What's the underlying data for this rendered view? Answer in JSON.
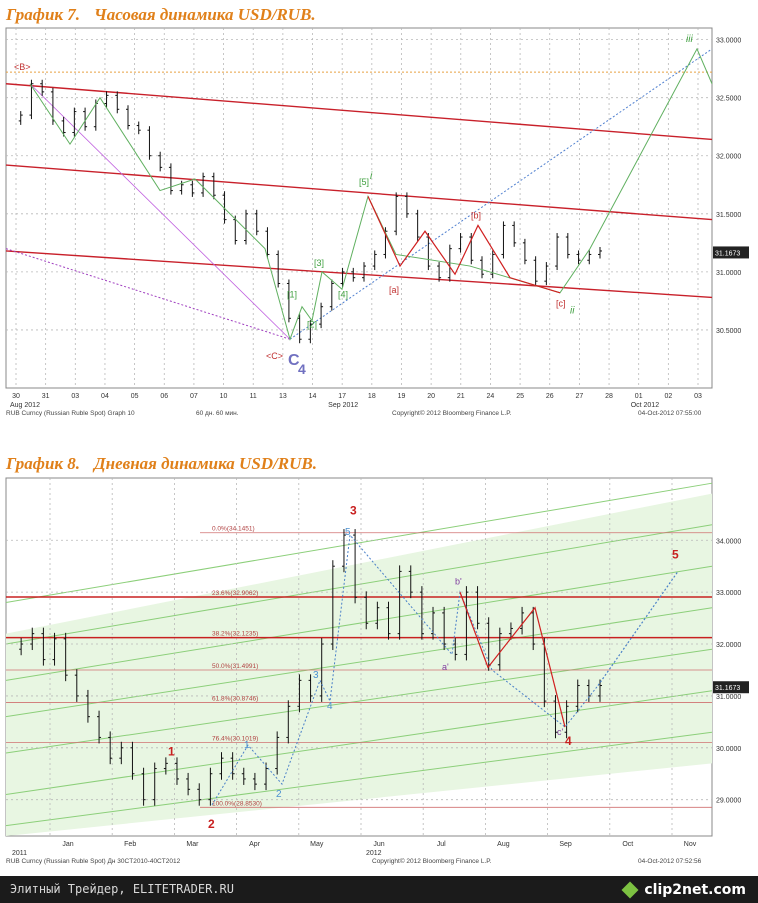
{
  "chart_data": [
    {
      "type": "line",
      "title": "График 7.",
      "subtitle": "Часовая динамика USD/RUB.",
      "y_ticks": [
        "33.0000",
        "32.5000",
        "32.0000",
        "31.5000",
        "31.0000",
        "30.5000"
      ],
      "ylim": [
        30.0,
        33.1
      ],
      "x_ticks": [
        "30",
        "31",
        "03",
        "04",
        "05",
        "06",
        "07",
        "10",
        "11",
        "13",
        "14",
        "17",
        "18",
        "19",
        "20",
        "21",
        "24",
        "25",
        "26",
        "27",
        "28",
        "01",
        "02",
        "03"
      ],
      "x_group_labels": [
        "Aug 2012",
        "Sep 2012",
        "Oct 2012"
      ],
      "last_price": "31.1673",
      "footer_left": "RUB Curncy (Russian Ruble Spot) Graph 10",
      "footer_mid": "60 дн. 60 мин.",
      "footer_copy": "Copyright© 2012 Bloomberg Finance L.P.",
      "footer_date": "04-Oct-2012 07:55:00",
      "wave_labels": [
        "<B>",
        "<C>",
        "C",
        "4",
        "[1]",
        "[2]",
        "[3]",
        "[4]",
        "[5]",
        "i",
        "[a]",
        "[b]",
        "[c]",
        "ii",
        "iii"
      ],
      "series": [
        {
          "values": [
            32.3,
            32.35,
            32.62,
            32.55,
            32.3,
            32.2,
            32.38,
            32.25,
            32.45,
            32.52,
            32.4,
            32.26,
            32.22,
            32.0,
            31.9,
            31.7,
            31.75,
            31.68,
            31.82,
            31.66,
            31.45,
            31.27,
            31.5,
            31.35,
            31.15,
            30.9,
            30.6,
            30.42,
            30.55,
            30.7,
            30.9,
            31.0,
            30.95,
            31.05,
            31.15,
            31.35,
            31.65,
            31.5,
            31.3,
            31.05,
            30.95,
            31.2,
            31.3,
            31.1,
            30.98,
            31.15,
            31.4,
            31.25,
            31.1,
            30.92,
            31.05,
            31.3,
            31.15,
            31.1,
            31.15,
            31.18
          ]
        }
      ]
    },
    {
      "type": "line",
      "title": "График 8.",
      "subtitle": "Дневная динамика USD/RUB.",
      "y_ticks": [
        "34.0000",
        "33.0000",
        "32.0000",
        "31.0000",
        "30.0000",
        "29.0000"
      ],
      "ylim": [
        28.3,
        35.2
      ],
      "x_ticks": [
        "Jan",
        "Feb",
        "Mar",
        "Apr",
        "May",
        "Jun",
        "Jul",
        "Aug",
        "Sep",
        "Oct",
        "Nov"
      ],
      "x_group_labels": [
        "2011",
        "2012"
      ],
      "last_price": "31.1673",
      "footer_left": "RUB Curncy (Russian Ruble Spot) Дн 30CT2010-40CT2012",
      "footer_copy": "Copyright© 2012 Bloomberg Finance L.P.",
      "footer_date": "04-Oct-2012 07:52:56",
      "fib_levels": [
        {
          "label": "0.0%(34.1451)",
          "value": 34.1451
        },
        {
          "label": "23.6%(32.9062)",
          "value": 32.9062
        },
        {
          "label": "38.2%(32.1235)",
          "value": 32.1235
        },
        {
          "label": "50.0%(31.4991)",
          "value": 31.4991
        },
        {
          "label": "61.8%(30.8746)",
          "value": 30.8746
        },
        {
          "label": "76.4%(30.1019)",
          "value": 30.1019
        },
        {
          "label": "100.0%(28.8530)",
          "value": 28.853
        }
      ],
      "wave_labels": [
        "1",
        "2",
        "3",
        "4",
        "5",
        "1",
        "2",
        "3",
        "4",
        "5",
        "a'",
        "b'",
        "c'"
      ],
      "series": [
        {
          "values": [
            31.9,
            32.0,
            32.2,
            31.7,
            32.1,
            31.4,
            31.0,
            30.6,
            30.2,
            29.8,
            30.0,
            29.5,
            29.0,
            29.6,
            29.7,
            29.4,
            29.2,
            29.0,
            29.5,
            29.8,
            29.5,
            29.4,
            29.3,
            29.6,
            30.2,
            30.8,
            31.3,
            31.0,
            32.0,
            33.5,
            34.1,
            32.9,
            32.4,
            32.7,
            32.2,
            33.4,
            33.0,
            32.2,
            32.6,
            32.0,
            31.8,
            33.0,
            32.4,
            31.6,
            32.2,
            32.3,
            32.6,
            32.0,
            30.9,
            30.3,
            30.8,
            31.2,
            31.0,
            31.2
          ]
        }
      ]
    }
  ],
  "footer": {
    "site_text": "Элитный Трейдер, ELITETRADER.RU",
    "logo_text": "clip2net.com",
    "logo_icon": "clip2net-diamond-icon"
  }
}
